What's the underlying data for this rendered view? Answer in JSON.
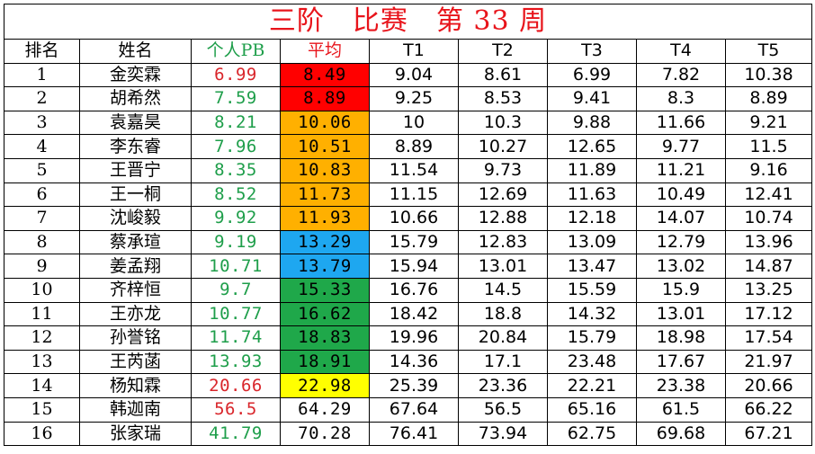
{
  "title": "三阶　比赛　第 33 周",
  "headers": {
    "rank": "排名",
    "name": "姓名",
    "pb": "个人PB",
    "avg": "平均",
    "t1": "T1",
    "t2": "T2",
    "t3": "T3",
    "t4": "T4",
    "t5": "T5"
  },
  "colors": {
    "title_red": "#e8141b",
    "pb_green": "#1e9e4a",
    "pb_red": "#d9262b",
    "avg_red": "#ff0000",
    "avg_orange": "#ffb000",
    "avg_blue": "#1ea7f0",
    "avg_green": "#1fa84a",
    "avg_yellow": "#ffff00",
    "avg_none": "#ffffff"
  },
  "rows": [
    {
      "rank": "1",
      "name": "金奕霖",
      "pb": "6.99",
      "pb_color": "red",
      "avg": "8.49",
      "avg_fill": "red",
      "t1": "9.04",
      "t2": "8.61",
      "t3": "6.99",
      "t4": "7.82",
      "t5": "10.38"
    },
    {
      "rank": "2",
      "name": "胡希然",
      "pb": "7.59",
      "pb_color": "green",
      "avg": "8.89",
      "avg_fill": "red",
      "t1": "9.25",
      "t2": "8.53",
      "t3": "9.41",
      "t4": "8.3",
      "t5": "8.89"
    },
    {
      "rank": "3",
      "name": "袁嘉昊",
      "pb": "8.21",
      "pb_color": "green",
      "avg": "10.06",
      "avg_fill": "orange",
      "t1": "10",
      "t2": "10.3",
      "t3": "9.88",
      "t4": "11.66",
      "t5": "9.21"
    },
    {
      "rank": "4",
      "name": "李东睿",
      "pb": "7.96",
      "pb_color": "green",
      "avg": "10.51",
      "avg_fill": "orange",
      "t1": "8.89",
      "t2": "10.27",
      "t3": "12.65",
      "t4": "9.77",
      "t5": "11.5"
    },
    {
      "rank": "5",
      "name": "王晋宁",
      "pb": "8.35",
      "pb_color": "green",
      "avg": "10.83",
      "avg_fill": "orange",
      "t1": "11.54",
      "t2": "9.73",
      "t3": "11.89",
      "t4": "11.21",
      "t5": "9.16"
    },
    {
      "rank": "6",
      "name": "王一桐",
      "pb": "8.52",
      "pb_color": "green",
      "avg": "11.73",
      "avg_fill": "orange",
      "t1": "11.15",
      "t2": "12.69",
      "t3": "11.63",
      "t4": "10.49",
      "t5": "12.41"
    },
    {
      "rank": "7",
      "name": "沈峻毅",
      "pb": "9.92",
      "pb_color": "green",
      "avg": "11.93",
      "avg_fill": "orange",
      "t1": "10.66",
      "t2": "12.88",
      "t3": "12.18",
      "t4": "14.07",
      "t5": "10.74"
    },
    {
      "rank": "8",
      "name": "蔡承瑄",
      "pb": "9.19",
      "pb_color": "green",
      "avg": "13.29",
      "avg_fill": "blue",
      "t1": "15.79",
      "t2": "12.83",
      "t3": "13.09",
      "t4": "12.79",
      "t5": "13.96"
    },
    {
      "rank": "9",
      "name": "姜孟翔",
      "pb": "10.71",
      "pb_color": "green",
      "avg": "13.79",
      "avg_fill": "blue",
      "t1": "15.94",
      "t2": "13.01",
      "t3": "13.47",
      "t4": "13.02",
      "t5": "14.87"
    },
    {
      "rank": "10",
      "name": "齐梓恒",
      "pb": "9.7",
      "pb_color": "green",
      "avg": "15.33",
      "avg_fill": "green",
      "t1": "16.76",
      "t2": "14.5",
      "t3": "15.59",
      "t4": "15.9",
      "t5": "13.25"
    },
    {
      "rank": "11",
      "name": "王亦龙",
      "pb": "10.77",
      "pb_color": "green",
      "avg": "16.62",
      "avg_fill": "green",
      "t1": "18.42",
      "t2": "18.8",
      "t3": "14.32",
      "t4": "13.01",
      "t5": "17.12"
    },
    {
      "rank": "12",
      "name": "孙誉铭",
      "pb": "11.74",
      "pb_color": "green",
      "avg": "18.83",
      "avg_fill": "green",
      "t1": "19.96",
      "t2": "20.84",
      "t3": "15.79",
      "t4": "18.98",
      "t5": "17.54"
    },
    {
      "rank": "13",
      "name": "王芮菡",
      "pb": "13.93",
      "pb_color": "green",
      "avg": "18.91",
      "avg_fill": "green",
      "t1": "14.36",
      "t2": "17.1",
      "t3": "23.48",
      "t4": "17.67",
      "t5": "21.97"
    },
    {
      "rank": "14",
      "name": "杨知霖",
      "pb": "20.66",
      "pb_color": "red",
      "avg": "22.98",
      "avg_fill": "yellow",
      "t1": "25.39",
      "t2": "23.36",
      "t3": "22.21",
      "t4": "23.38",
      "t5": "20.66"
    },
    {
      "rank": "15",
      "name": "韩迦南",
      "pb": "56.5",
      "pb_color": "red",
      "avg": "64.29",
      "avg_fill": "none",
      "t1": "67.64",
      "t2": "56.5",
      "t3": "65.16",
      "t4": "61.5",
      "t5": "66.22"
    },
    {
      "rank": "16",
      "name": "张家瑞",
      "pb": "41.79",
      "pb_color": "green",
      "avg": "70.28",
      "avg_fill": "none",
      "t1": "76.41",
      "t2": "73.94",
      "t3": "62.75",
      "t4": "69.68",
      "t5": "67.21"
    }
  ]
}
